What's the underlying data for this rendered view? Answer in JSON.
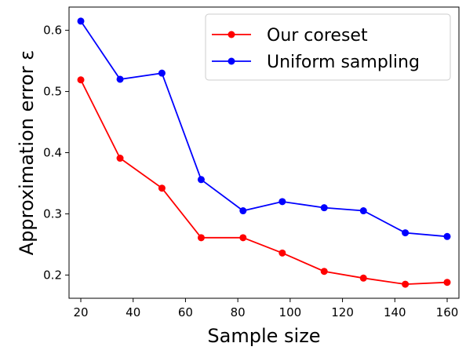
{
  "chart_data": {
    "type": "line",
    "xlabel": "Sample size",
    "ylabel": "Approximation error ε",
    "xlim": [
      15.5,
      164.5
    ],
    "ylim": [
      0.162,
      0.638
    ],
    "xticks": [
      20,
      40,
      60,
      80,
      100,
      120,
      140,
      160
    ],
    "yticks": [
      0.2,
      0.3,
      0.4,
      0.5,
      0.6
    ],
    "legend_position": "upper-right",
    "grid": false,
    "series": [
      {
        "name": "Our coreset",
        "color": "#ff0000",
        "marker": "circle",
        "x": [
          20,
          35,
          51,
          66,
          82,
          97,
          113,
          128,
          144,
          160
        ],
        "y": [
          0.519,
          0.391,
          0.342,
          0.261,
          0.261,
          0.236,
          0.206,
          0.195,
          0.185,
          0.188
        ]
      },
      {
        "name": "Uniform sampling",
        "color": "#0000ff",
        "marker": "circle",
        "x": [
          20,
          35,
          51,
          66,
          82,
          97,
          113,
          128,
          144,
          160
        ],
        "y": [
          0.615,
          0.52,
          0.53,
          0.356,
          0.305,
          0.32,
          0.31,
          0.305,
          0.269,
          0.263
        ]
      }
    ]
  }
}
